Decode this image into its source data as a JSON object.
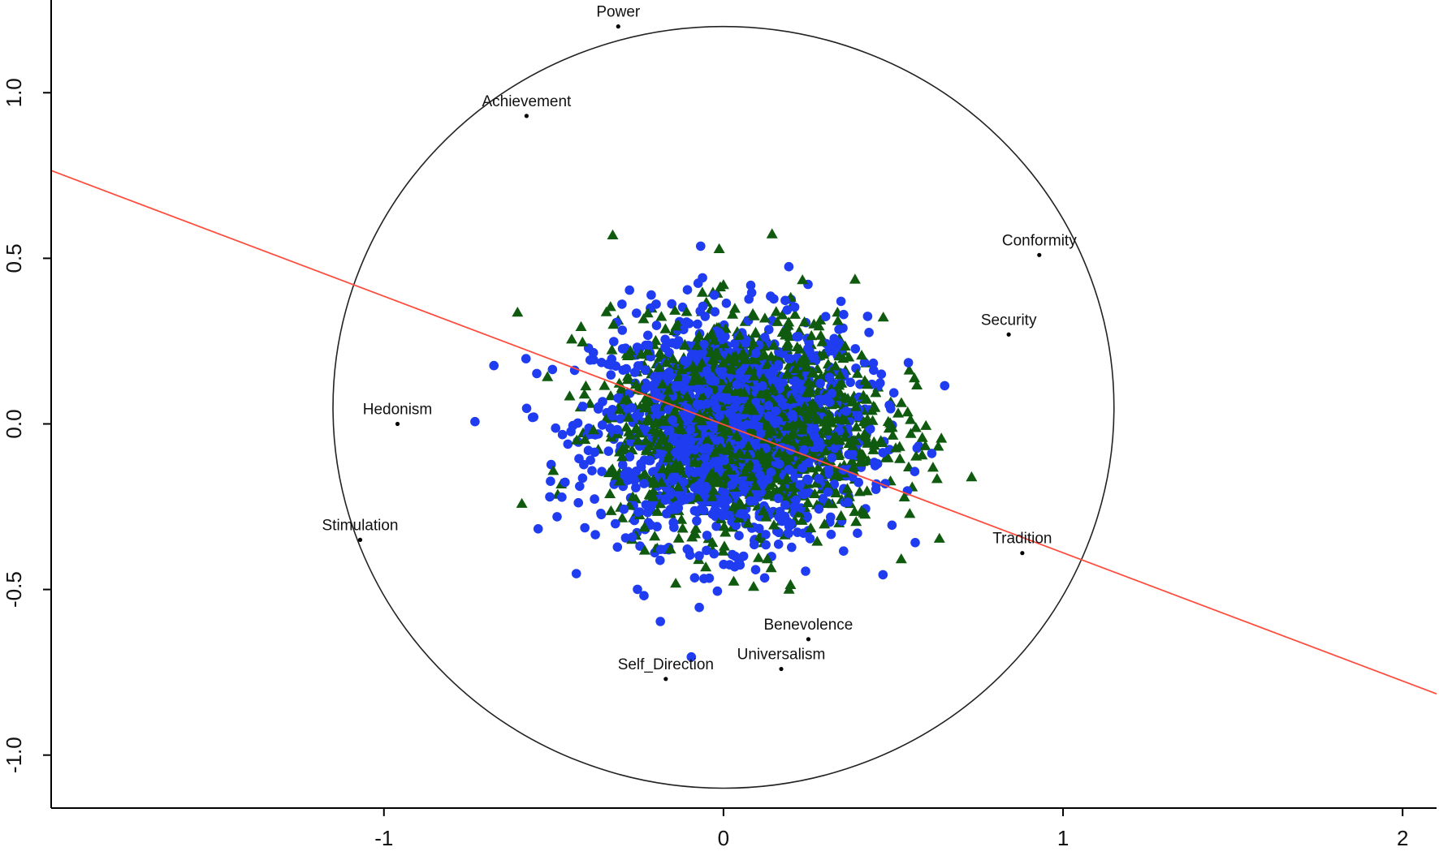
{
  "chart_data": {
    "type": "scatter",
    "title": "",
    "xlabel": "",
    "ylabel": "",
    "xlim": [
      -1.98,
      2.1
    ],
    "ylim": [
      -1.16,
      1.28
    ],
    "grid": false,
    "x_ticks": [
      {
        "value": -1,
        "label": "-1"
      },
      {
        "value": 0,
        "label": "0"
      },
      {
        "value": 1,
        "label": "1"
      },
      {
        "value": 2,
        "label": "2"
      }
    ],
    "y_ticks": [
      {
        "value": 1.0,
        "label": "1.0"
      },
      {
        "value": 0.5,
        "label": "0.5"
      },
      {
        "value": 0.0,
        "label": "0.0"
      },
      {
        "value": -0.5,
        "label": "-0.5"
      },
      {
        "value": -1.0,
        "label": "-1.0"
      }
    ],
    "circle": {
      "cx": 0,
      "cy": 0.05,
      "r": 1.15,
      "color": "#222222"
    },
    "fit_line": {
      "x": [
        -1.98,
        2.1
      ],
      "y": [
        0.765,
        -0.815
      ],
      "color": "#ff4d3d"
    },
    "value_points": [
      {
        "label": "Power",
        "x": -0.31,
        "y": 1.2
      },
      {
        "label": "Achievement",
        "x": -0.58,
        "y": 0.93
      },
      {
        "label": "Conformity",
        "x": 0.93,
        "y": 0.51
      },
      {
        "label": "Security",
        "x": 0.84,
        "y": 0.27
      },
      {
        "label": "Hedonism",
        "x": -0.96,
        "y": 0.0
      },
      {
        "label": "Stimulation",
        "x": -1.07,
        "y": -0.35
      },
      {
        "label": "Tradition",
        "x": 0.88,
        "y": -0.39
      },
      {
        "label": "Benevolence",
        "x": 0.25,
        "y": -0.65
      },
      {
        "label": "Universalism",
        "x": 0.17,
        "y": -0.74
      },
      {
        "label": "Self_Direction",
        "x": -0.17,
        "y": -0.77
      }
    ],
    "series": [
      {
        "marker": "circle",
        "color": "#1f3cf0",
        "count": 1500,
        "center": [
          0.02,
          -0.02
        ],
        "spread": [
          0.2,
          0.17
        ]
      },
      {
        "marker": "triangle",
        "color": "#0f5a0f",
        "count": 1500,
        "center": [
          0.07,
          0.0
        ],
        "spread": [
          0.2,
          0.16
        ]
      }
    ]
  }
}
